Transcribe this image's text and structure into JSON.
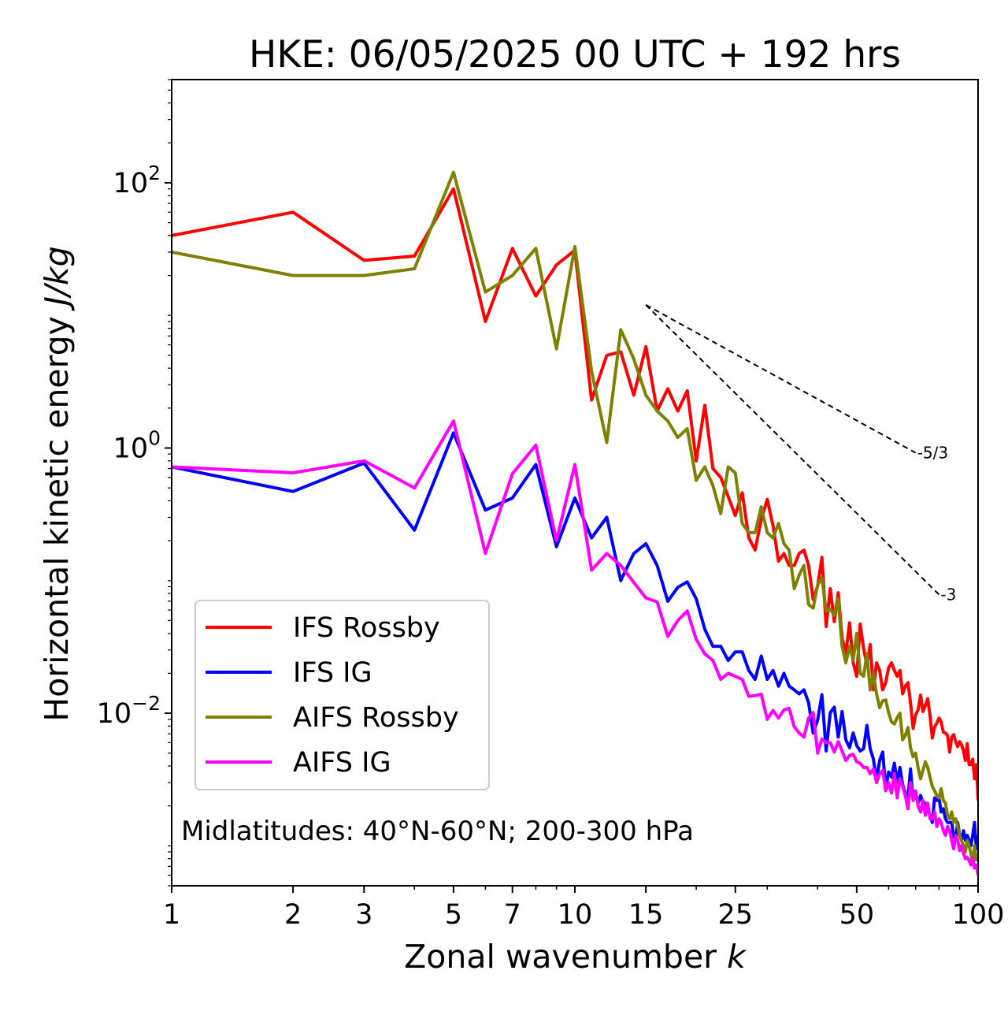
{
  "chart_data": {
    "type": "line",
    "title": "HKE: 06/05/2025 00 UTC + 192 hrs",
    "xlabel_text": "Zonal wavenumber ",
    "xlabel_var": "k",
    "ylabel_text": "Horizontal kinetic energy ",
    "ylabel_unit": "J/kg",
    "xscale": "log",
    "yscale": "log",
    "xlim": [
      1,
      100
    ],
    "ylim": [
      0.0005,
      600
    ],
    "x_ticks": [
      1,
      2,
      3,
      5,
      7,
      10,
      15,
      25,
      50,
      100
    ],
    "x_tick_labels": [
      "1",
      "2",
      "3",
      "5",
      "7",
      "10",
      "15",
      "25",
      "50",
      "100"
    ],
    "y_ticks": [
      {
        "value": 100,
        "base": "10",
        "exp": "2"
      },
      {
        "value": 1,
        "base": "10",
        "exp": "0"
      },
      {
        "value": 0.01,
        "base": "10",
        "exp": "−2"
      }
    ],
    "grid": false,
    "legend_position": "lower-left",
    "annotation": "Midlatitudes: 40°N-60°N; 200-300 hPa",
    "reference_slopes": [
      {
        "label": "-5/3",
        "x_start": 15,
        "x_end": 70,
        "y_start": 12,
        "y_end": 0.92
      },
      {
        "label": "-3",
        "x_start": 15,
        "x_end": 80,
        "y_start": 12,
        "y_end": 0.0785
      }
    ],
    "series": [
      {
        "name": "IFS Rossby",
        "color": "#ff0000",
        "x": [
          1,
          2,
          3,
          4,
          5,
          6,
          7,
          8,
          9,
          10,
          11,
          12,
          13,
          14,
          15,
          16,
          17,
          18,
          19,
          20,
          21,
          22,
          23,
          24,
          25,
          26,
          27,
          28,
          29,
          30,
          31,
          32,
          33,
          34,
          35,
          36,
          37,
          38,
          39,
          40,
          41,
          42,
          43,
          44,
          45,
          46,
          47,
          48,
          49,
          50,
          51,
          52,
          53,
          54,
          55,
          56,
          57,
          58,
          59,
          60,
          61,
          62,
          63,
          64,
          65,
          66,
          67,
          68,
          69,
          70,
          71,
          72,
          73,
          74,
          75,
          76,
          77,
          78,
          79,
          80,
          81,
          82,
          83,
          84,
          85,
          86,
          87,
          88,
          89,
          90,
          91,
          92,
          93,
          94,
          95,
          96,
          97,
          98,
          99,
          100
        ],
        "y": [
          40,
          60,
          26,
          28,
          90,
          9,
          32,
          14,
          24,
          31,
          2.3,
          5.0,
          5.3,
          2.5,
          5.8,
          1.9,
          2.8,
          1.9,
          2.7,
          0.8,
          2.1,
          0.7,
          0.6,
          0.43,
          0.31,
          0.46,
          0.21,
          0.17,
          0.29,
          0.41,
          0.26,
          0.14,
          0.16,
          0.13,
          0.13,
          0.16,
          0.17,
          0.13,
          0.072,
          0.091,
          0.15,
          0.045,
          0.087,
          0.049,
          0.081,
          0.037,
          0.028,
          0.048,
          0.024,
          0.019,
          0.047,
          0.031,
          0.023,
          0.033,
          0.015,
          0.024,
          0.021,
          0.015,
          0.017,
          0.022,
          0.024,
          0.021,
          0.019,
          0.021,
          0.014,
          0.016,
          0.017,
          0.012,
          0.0077,
          0.0097,
          0.0106,
          0.0137,
          0.0103,
          0.0114,
          0.0129,
          0.0096,
          0.0065,
          0.0079,
          0.0084,
          0.0092,
          0.0086,
          0.0072,
          0.0071,
          0.0068,
          0.0051,
          0.0066,
          0.0069,
          0.0061,
          0.0056,
          0.0061,
          0.0058,
          0.0052,
          0.0044,
          0.0059,
          0.0041,
          0.0041,
          0.0045,
          0.0032,
          0.0041,
          0.0022
        ]
      },
      {
        "name": "IFS IG",
        "color": "#0000ff",
        "x": [
          1,
          2,
          3,
          4,
          5,
          6,
          7,
          8,
          9,
          10,
          11,
          12,
          13,
          14,
          15,
          16,
          17,
          18,
          19,
          20,
          21,
          22,
          23,
          24,
          25,
          26,
          27,
          28,
          29,
          30,
          31,
          32,
          33,
          34,
          35,
          36,
          37,
          38,
          39,
          40,
          41,
          42,
          43,
          44,
          45,
          46,
          47,
          48,
          49,
          50,
          51,
          52,
          53,
          54,
          55,
          56,
          57,
          58,
          59,
          60,
          61,
          62,
          63,
          64,
          65,
          66,
          67,
          68,
          69,
          70,
          71,
          72,
          73,
          74,
          75,
          76,
          77,
          78,
          79,
          80,
          81,
          82,
          83,
          84,
          85,
          86,
          87,
          88,
          89,
          90,
          91,
          92,
          93,
          94,
          95,
          96,
          97,
          98,
          99,
          100
        ],
        "y": [
          0.72,
          0.47,
          0.77,
          0.24,
          1.3,
          0.34,
          0.42,
          0.75,
          0.18,
          0.42,
          0.21,
          0.3,
          0.1,
          0.16,
          0.19,
          0.13,
          0.07,
          0.089,
          0.098,
          0.073,
          0.043,
          0.032,
          0.032,
          0.025,
          0.029,
          0.029,
          0.021,
          0.018,
          0.027,
          0.018,
          0.021,
          0.016,
          0.02,
          0.016,
          0.015,
          0.014,
          0.015,
          0.012,
          0.0071,
          0.0089,
          0.0138,
          0.0052,
          0.0101,
          0.0111,
          0.0066,
          0.0103,
          0.0063,
          0.0055,
          0.0071,
          0.0057,
          0.0052,
          0.0054,
          0.0081,
          0.0054,
          0.0045,
          0.0031,
          0.0044,
          0.0051,
          0.0027,
          0.0036,
          0.0033,
          0.0042,
          0.003,
          0.0039,
          0.0029,
          0.0025,
          0.0023,
          0.0038,
          0.0022,
          0.0024,
          0.0021,
          0.0024,
          0.0021,
          0.0021,
          0.0019,
          0.0017,
          0.0015,
          0.0023,
          0.0022,
          0.0023,
          0.0018,
          0.0019,
          0.0016,
          0.0015,
          0.0015,
          0.0015,
          0.0012,
          0.0011,
          0.0015,
          0.0012,
          0.0011,
          0.0013,
          0.0011,
          0.0012,
          0.0011,
          0.001,
          0.0012,
          0.0015,
          0.00095,
          0.0012
        ]
      },
      {
        "name": "AIFS Rossby",
        "color": "#808000",
        "x": [
          1,
          2,
          3,
          4,
          5,
          6,
          7,
          8,
          9,
          10,
          11,
          12,
          13,
          14,
          15,
          16,
          17,
          18,
          19,
          20,
          21,
          22,
          23,
          24,
          25,
          26,
          27,
          28,
          29,
          30,
          31,
          32,
          33,
          34,
          35,
          36,
          37,
          38,
          39,
          40,
          41,
          42,
          43,
          44,
          45,
          46,
          47,
          48,
          49,
          50,
          51,
          52,
          53,
          54,
          55,
          56,
          57,
          58,
          59,
          60,
          61,
          62,
          63,
          64,
          65,
          66,
          67,
          68,
          69,
          70,
          71,
          72,
          73,
          74,
          75,
          76,
          77,
          78,
          79,
          80,
          81,
          82,
          83,
          84,
          85,
          86,
          87,
          88,
          89,
          90,
          91,
          92,
          93,
          94,
          95,
          96,
          97,
          98,
          99,
          100
        ],
        "y": [
          30,
          20,
          20,
          22.5,
          120,
          15,
          20,
          32,
          5.6,
          33,
          3.8,
          1.1,
          7.8,
          4.7,
          2.5,
          1.9,
          1.6,
          1.2,
          1.4,
          0.57,
          0.72,
          0.52,
          0.32,
          0.72,
          0.65,
          0.27,
          0.23,
          0.23,
          0.36,
          0.23,
          0.21,
          0.27,
          0.19,
          0.17,
          0.087,
          0.11,
          0.13,
          0.066,
          0.062,
          0.093,
          0.105,
          0.059,
          0.061,
          0.055,
          0.073,
          0.032,
          0.024,
          0.032,
          0.025,
          0.04,
          0.02,
          0.019,
          0.028,
          0.015,
          0.02,
          0.014,
          0.011,
          0.0124,
          0.0126,
          0.0101,
          0.0086,
          0.0083,
          0.0093,
          0.01,
          0.0063,
          0.0068,
          0.0078,
          0.0055,
          0.0047,
          0.005,
          0.0039,
          0.0032,
          0.0037,
          0.0043,
          0.0039,
          0.0033,
          0.0028,
          0.0026,
          0.0024,
          0.0023,
          0.0027,
          0.0022,
          0.0021,
          0.0017,
          0.0016,
          0.0018,
          0.0015,
          0.0016,
          0.0014,
          0.0012,
          0.0011,
          0.001,
          0.0009,
          0.0011,
          0.001,
          0.00088,
          0.00072,
          0.001,
          0.00078,
          0.00082
        ]
      },
      {
        "name": "AIFS IG",
        "color": "#ff00ff",
        "x": [
          1,
          2,
          3,
          4,
          5,
          6,
          7,
          8,
          9,
          10,
          11,
          12,
          13,
          14,
          15,
          16,
          17,
          18,
          19,
          20,
          21,
          22,
          23,
          24,
          25,
          26,
          27,
          28,
          29,
          30,
          31,
          32,
          33,
          34,
          35,
          36,
          37,
          38,
          39,
          40,
          41,
          42,
          43,
          44,
          45,
          46,
          47,
          48,
          49,
          50,
          51,
          52,
          53,
          54,
          55,
          56,
          57,
          58,
          59,
          60,
          61,
          62,
          63,
          64,
          65,
          66,
          67,
          68,
          69,
          70,
          71,
          72,
          73,
          74,
          75,
          76,
          77,
          78,
          79,
          80,
          81,
          82,
          83,
          84,
          85,
          86,
          87,
          88,
          89,
          90,
          91,
          92,
          93,
          94,
          95,
          96,
          97,
          98,
          99,
          100
        ],
        "y": [
          0.72,
          0.65,
          0.8,
          0.5,
          1.6,
          0.16,
          0.64,
          1.05,
          0.2,
          0.75,
          0.12,
          0.16,
          0.13,
          0.097,
          0.074,
          0.069,
          0.038,
          0.05,
          0.059,
          0.036,
          0.028,
          0.025,
          0.018,
          0.02,
          0.019,
          0.018,
          0.0134,
          0.0136,
          0.0139,
          0.009,
          0.0105,
          0.0092,
          0.0106,
          0.0109,
          0.0079,
          0.0071,
          0.0066,
          0.0092,
          0.0101,
          0.005,
          0.0064,
          0.006,
          0.006,
          0.0051,
          0.0061,
          0.0052,
          0.0044,
          0.0048,
          0.0049,
          0.0043,
          0.0042,
          0.0039,
          0.0039,
          0.0035,
          0.0038,
          0.003,
          0.0035,
          0.0037,
          0.0026,
          0.003,
          0.0025,
          0.0035,
          0.0023,
          0.0032,
          0.0028,
          0.0024,
          0.0019,
          0.003,
          0.0022,
          0.0026,
          0.002,
          0.0018,
          0.0022,
          0.0017,
          0.0021,
          0.0016,
          0.0016,
          0.0018,
          0.0014,
          0.0016,
          0.0015,
          0.0013,
          0.0012,
          0.0014,
          0.0013,
          0.0011,
          0.00095,
          0.0012,
          0.0011,
          0.00092,
          0.001,
          0.00088,
          0.0008,
          0.00082,
          0.00077,
          0.00072,
          0.00081,
          0.00068,
          0.00072,
          0.0006
        ]
      }
    ]
  }
}
